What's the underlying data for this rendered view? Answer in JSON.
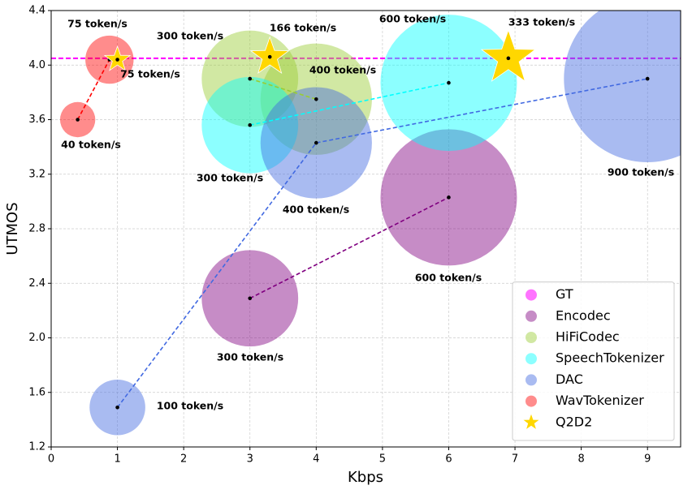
{
  "chart_data": {
    "type": "bubble",
    "x_label": "Kbps",
    "y_label": "UTMOS",
    "xlim": [
      0,
      9.5
    ],
    "xticks": [
      0,
      1,
      2,
      3,
      4,
      5,
      6,
      7,
      8,
      9
    ],
    "ylim": [
      1.2,
      4.4
    ],
    "yticks": [
      1.2,
      1.6,
      {
        "value": 2,
        "label": "2.0"
      },
      2.4,
      2.8,
      3.2,
      3.6,
      {
        "value": 4,
        "label": "4.0"
      },
      4.4
    ],
    "grid": true,
    "legend": "lower right",
    "series": [
      {
        "name": "GT",
        "color": "#ff00ff",
        "hline": 4.05
      },
      {
        "name": "Encodec",
        "color": "#800080",
        "x": [
          3,
          6
        ],
        "values": [
          2.29,
          3.03
        ],
        "sizes": [
          300,
          600
        ],
        "size_labels": [
          "300 token/s",
          "600 token/s"
        ]
      },
      {
        "name": "HiFiCodec",
        "color": "#9acd32",
        "x": [
          3,
          4
        ],
        "values": [
          3.9,
          3.75
        ],
        "sizes": [
          300,
          400
        ],
        "size_labels": [
          "300 token/s",
          "400 token/s"
        ]
      },
      {
        "name": "SpeechTokenizer",
        "color": "#00ffff",
        "x": [
          3,
          6
        ],
        "values": [
          3.56,
          3.87
        ],
        "sizes": [
          300,
          600
        ],
        "size_labels": [
          "300 token/s",
          "600 token/s"
        ]
      },
      {
        "name": "DAC",
        "color": "#4169e1",
        "x": [
          1,
          4,
          9
        ],
        "values": [
          1.49,
          3.43,
          3.9
        ],
        "sizes": [
          100,
          400,
          900
        ],
        "size_labels": [
          "100 token/s",
          "400 token/s",
          "900 token/s"
        ]
      },
      {
        "name": "WavTokenizer",
        "color": "#ff0000",
        "x": [
          0.4,
          0.88
        ],
        "values": [
          3.6,
          4.04
        ],
        "sizes": [
          40,
          75
        ],
        "size_labels": [
          "40 token/s",
          "75 token/s"
        ]
      },
      {
        "name": "Q2D2",
        "color": "#ffd700",
        "marker": "star",
        "x": [
          1,
          3.3,
          6.9
        ],
        "values": [
          4.04,
          4.06,
          4.05
        ],
        "sizes": [
          75,
          166,
          333
        ],
        "size_labels": [
          "75 token/s",
          "166 token/s",
          "333 token/s"
        ]
      }
    ]
  }
}
